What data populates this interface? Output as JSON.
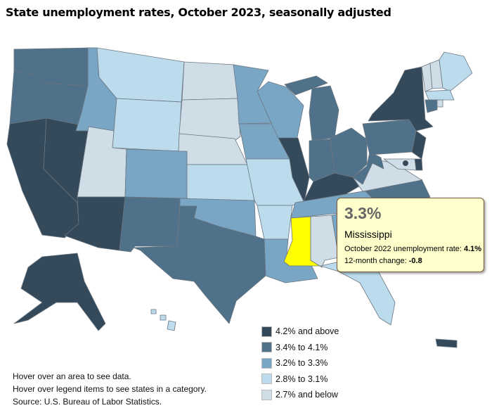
{
  "title": "State unemployment rates, October 2023, seasonally adjusted",
  "legend": [
    {
      "label": "4.2% and above",
      "color": "#34495a"
    },
    {
      "label": "3.4% to 4.1%",
      "color": "#4f7189"
    },
    {
      "label": "3.2% to 3.3%",
      "color": "#7aa6c5"
    },
    {
      "label": "2.8% to 3.1%",
      "color": "#bcdcee"
    },
    {
      "label": "2.7% and below",
      "color": "#cfdde6"
    }
  ],
  "highlight_color": "#ffff00",
  "regions": {
    "WA": 1,
    "OR": 1,
    "CA": 0,
    "NV": 0,
    "AZ": 0,
    "ID": 2,
    "MT": 3,
    "WY": 3,
    "UT": 4,
    "CO": 2,
    "NM": 1,
    "ND": 4,
    "SD": 4,
    "NE": 4,
    "KS": 3,
    "OK": 2,
    "TX": 1,
    "MN": 2,
    "IA": 2,
    "MO": 3,
    "AR": 3,
    "LA": 2,
    "WI": 2,
    "IL": 0,
    "MI": 1,
    "MI_UP": 1,
    "IN": 1,
    "OH": 1,
    "KY": 0,
    "TN": 2,
    "MS": "highlight",
    "AL": 4,
    "GA": 2,
    "FL": 3,
    "NC": 1,
    "VA": 4,
    "WV": 1,
    "PA": 1,
    "NY": 0,
    "NJ": 0,
    "DE": 0,
    "MD": 4,
    "VT": 4,
    "NH": 4,
    "ME": 3,
    "MA": 3,
    "CT": 1,
    "RI": 4,
    "DC": 0,
    "AK": 0,
    "HI": 3,
    "PR": 0
  },
  "tooltip": {
    "rate": "3.3%",
    "state": "Mississippi",
    "prev_label": "October 2022 unemployment rate: ",
    "prev_value": "4.1%",
    "change_label": "12-month change: ",
    "change_value": "-0.8"
  },
  "notes": [
    "Hover over an area to see data.",
    "Hover over legend items to see states in a category.",
    "Source: U.S. Bureau of Labor Statistics."
  ]
}
